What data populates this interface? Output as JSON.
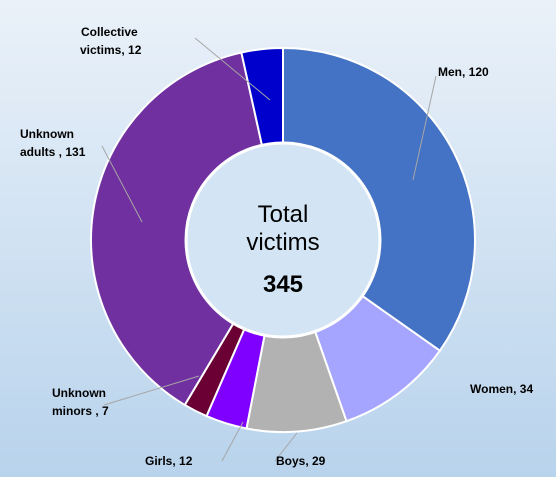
{
  "chart_data": {
    "type": "donut",
    "values": [
      120,
      34,
      29,
      12,
      7,
      131,
      12
    ],
    "value_labels": [
      "Men, 120",
      "Women, 34",
      "Boys, 29",
      "Girls, 12",
      "Unknown minors , 7",
      "Unknown adults , 131",
      "Collective victims, 12"
    ],
    "colors": [
      "#4472c4",
      "#a5a5ff",
      "#b2b2b2",
      "#7f00ff",
      "#6a0033",
      "#7030a0",
      "#0000cc"
    ],
    "center_label": "Total victims",
    "total": 345
  }
}
